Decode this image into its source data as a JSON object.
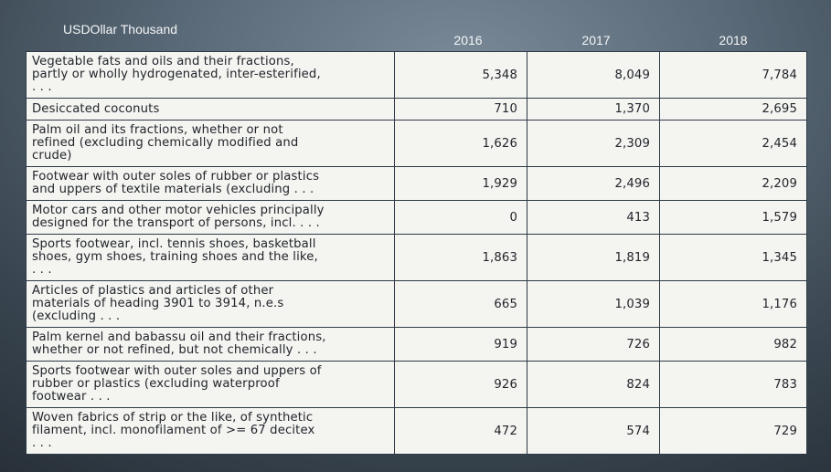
{
  "chart_data": {
    "type": "table",
    "unit_label": "USDOllar Thousand",
    "columns": [
      "2016",
      "2017",
      "2018"
    ],
    "rows": [
      {
        "label": "Vegetable fats and oils and their fractions,\npartly or wholly hydrogenated, inter-esterified,\n. . .",
        "values": [
          "5,348",
          "8,049",
          "7,784"
        ]
      },
      {
        "label": "Desiccated coconuts",
        "values": [
          "710",
          "1,370",
          "2,695"
        ]
      },
      {
        "label": "Palm oil and its fractions, whether or not\nrefined (excluding chemically modified and\ncrude)",
        "values": [
          "1,626",
          "2,309",
          "2,454"
        ]
      },
      {
        "label": "Footwear with outer soles of rubber or plastics\nand uppers of textile materials (excluding . . .",
        "values": [
          "1,929",
          "2,496",
          "2,209"
        ]
      },
      {
        "label": "Motor cars and other motor vehicles principally\ndesigned for the transport of persons, incl. . . .",
        "values": [
          "0",
          "413",
          "1,579"
        ]
      },
      {
        "label": "Sports footwear, incl. tennis shoes, basketball\nshoes, gym shoes, training shoes and the like,\n. . .",
        "values": [
          "1,863",
          "1,819",
          "1,345"
        ]
      },
      {
        "label": "Articles of plastics and articles of other\nmaterials of heading 3901 to 3914, n.e.s\n(excluding . . .",
        "values": [
          "665",
          "1,039",
          "1,176"
        ]
      },
      {
        "label": "Palm kernel and babassu oil and their fractions,\nwhether or not refined, but not chemically . . .",
        "values": [
          "919",
          "726",
          "982"
        ]
      },
      {
        "label": "Sports footwear with outer soles and uppers of\nrubber or plastics (excluding waterproof\nfootwear . . .",
        "values": [
          "926",
          "824",
          "783"
        ]
      },
      {
        "label": "Woven fabrics of strip or the like, of synthetic\nfilament, incl. monofilament of >= 67 decitex\n. . .",
        "values": [
          "472",
          "574",
          "729"
        ]
      }
    ]
  },
  "colors": {
    "background_center": "#7a8a98",
    "background_edge": "#262e36",
    "table_fill": "#f4f4f1",
    "table_border": "#2e3a46",
    "header_text": "#f4f6f8"
  }
}
